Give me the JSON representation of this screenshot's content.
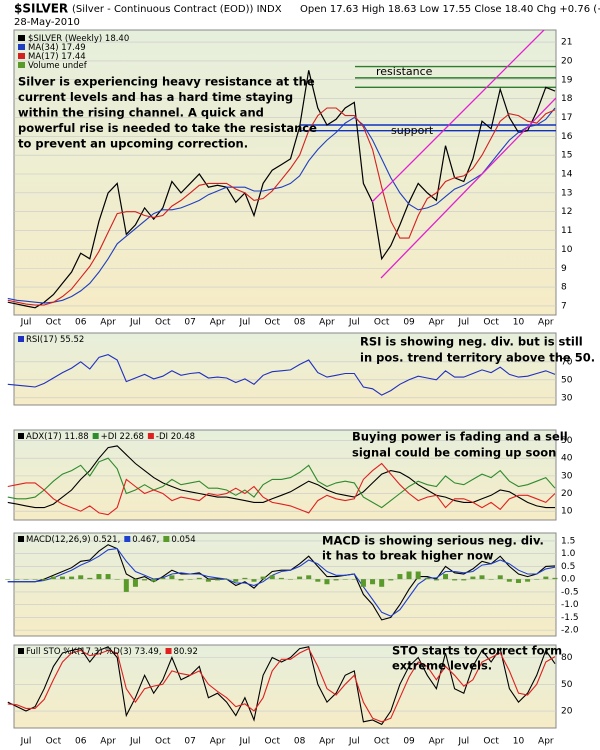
{
  "chart_data": [
    {
      "type": "line",
      "title": "$SILVER",
      "subtitle": "(Silver - Continuous Contract (EOD)) INDX",
      "date": "28-May-2010",
      "quote": "Open 17.63 High 18.63 Low 17.55 Close 18.40 Chg +0.76 (+4.31%)",
      "categories": [
        null,
        null,
        "Jul",
        null,
        null,
        "Oct",
        null,
        null,
        "06",
        null,
        null,
        "Apr",
        null,
        null,
        "Jul",
        null,
        null,
        "Oct",
        null,
        null,
        "07",
        null,
        null,
        "Apr",
        null,
        null,
        "Jul",
        null,
        null,
        "Oct",
        null,
        null,
        "08",
        null,
        null,
        "Apr",
        null,
        null,
        "Jul",
        null,
        null,
        "Oct",
        null,
        null,
        "09",
        null,
        null,
        "Apr",
        null,
        null,
        "Jul",
        null,
        null,
        "Oct",
        null,
        null,
        "10",
        null,
        null,
        "Apr",
        null
      ],
      "series": [
        {
          "name": "$SILVER (Weekly) 18.40",
          "color": "#000000",
          "values": [
            7.2,
            7.1,
            7.0,
            6.9,
            7.2,
            7.6,
            8.2,
            8.8,
            9.8,
            9.5,
            11.5,
            13.0,
            13.5,
            10.8,
            11.3,
            12.2,
            11.6,
            12.2,
            13.6,
            13.0,
            13.5,
            14.0,
            13.3,
            13.4,
            13.3,
            12.5,
            13.0,
            11.8,
            13.5,
            14.2,
            14.5,
            14.8,
            16.5,
            19.5,
            17.5,
            16.6,
            16.9,
            17.5,
            17.8,
            13.5,
            12.5,
            9.5,
            10.2,
            11.3,
            12.5,
            13.5,
            13.0,
            12.6,
            15.5,
            13.8,
            13.6,
            14.8,
            16.8,
            16.4,
            18.5,
            17.0,
            16.2,
            16.3,
            17.3,
            18.6,
            18.4
          ]
        },
        {
          "name": "MA(34) 17.49",
          "color": "#1f3fc0",
          "values": [
            7.4,
            7.3,
            7.25,
            7.2,
            7.15,
            7.2,
            7.3,
            7.5,
            7.8,
            8.2,
            8.8,
            9.5,
            10.3,
            10.7,
            11.1,
            11.5,
            11.9,
            12.1,
            12.1,
            12.2,
            12.4,
            12.6,
            12.9,
            13.1,
            13.3,
            13.3,
            13.3,
            13.1,
            13.1,
            13.2,
            13.3,
            13.5,
            13.9,
            14.7,
            15.3,
            15.8,
            16.2,
            16.7,
            17.0,
            16.6,
            15.8,
            14.8,
            13.8,
            13.0,
            12.4,
            12.1,
            12.2,
            12.4,
            12.8,
            13.2,
            13.4,
            13.7,
            14.0,
            14.6,
            15.2,
            15.8,
            16.2,
            16.5,
            16.6,
            16.9,
            17.5
          ]
        },
        {
          "name": "MA(17) 17.44",
          "color": "#d42020",
          "values": [
            7.3,
            7.2,
            7.1,
            7.05,
            7.05,
            7.2,
            7.5,
            7.9,
            8.5,
            9.1,
            9.9,
            10.9,
            11.9,
            12.0,
            12.0,
            11.8,
            11.7,
            11.8,
            12.3,
            12.6,
            13.0,
            13.4,
            13.5,
            13.5,
            13.5,
            13.2,
            13.0,
            12.6,
            12.7,
            13.1,
            13.7,
            14.3,
            15.0,
            16.3,
            17.1,
            17.5,
            17.5,
            17.1,
            17.1,
            16.5,
            15.3,
            13.3,
            11.5,
            10.6,
            10.6,
            11.8,
            12.7,
            13.0,
            13.6,
            13.8,
            13.9,
            14.3,
            15.0,
            15.9,
            16.8,
            17.2,
            17.1,
            16.8,
            16.7,
            17.2,
            17.4
          ]
        }
      ],
      "legend_note": "Volume undef",
      "ylim": [
        6.52,
        21.64
      ],
      "yticks": [
        7,
        8,
        9,
        10,
        11,
        12,
        13,
        14,
        15,
        16,
        17,
        18,
        19,
        20,
        21
      ],
      "grid": true,
      "resistance_label": "resistance",
      "resistance_levels": [
        19.7,
        19.1,
        18.6
      ],
      "support_label": "support",
      "support_levels": [
        16.6,
        16.3
      ],
      "annotation": [
        "Silver is experiencing heavy resistance at the",
        "current levels and has a hard time staying",
        "within the rising channel. A quick and",
        "powerful rise is needed to take the resistance",
        "to prevent an upcoming correction."
      ]
    },
    {
      "type": "line",
      "series": [
        {
          "name": "RSI(17) 55.52",
          "color": "#2030c0",
          "values": [
            45,
            44,
            43,
            42,
            46,
            52,
            58,
            63,
            70,
            62,
            75,
            78,
            72,
            48,
            52,
            56,
            51,
            54,
            60,
            55,
            57,
            58,
            52,
            53,
            52,
            47,
            51,
            45,
            55,
            59,
            60,
            61,
            67,
            72,
            58,
            53,
            55,
            57,
            57,
            42,
            40,
            33,
            38,
            45,
            50,
            54,
            52,
            50,
            60,
            53,
            53,
            57,
            61,
            58,
            64,
            56,
            53,
            54,
            57,
            60,
            56
          ]
        }
      ],
      "ylim": [
        22,
        102
      ],
      "yticks": [
        30,
        50,
        70
      ],
      "grid": true,
      "annotation": [
        "RSI is showing neg. div. but is still",
        "in pos. trend territory above the 50."
      ]
    },
    {
      "type": "line",
      "series": [
        {
          "name": "ADX(17) 11.88",
          "color": "#000000",
          "values": [
            15,
            14,
            13,
            12,
            12,
            14,
            18,
            22,
            28,
            33,
            40,
            46,
            47,
            42,
            37,
            33,
            29,
            26,
            24,
            22,
            21,
            20,
            19,
            18,
            18,
            17,
            16,
            15,
            15,
            17,
            19,
            21,
            24,
            27,
            25,
            22,
            20,
            19,
            18,
            21,
            26,
            31,
            33,
            32,
            29,
            25,
            22,
            19,
            18,
            16,
            15,
            15,
            17,
            19,
            22,
            21,
            18,
            15,
            13,
            12,
            12
          ]
        },
        {
          "name": "+DI 22.68",
          "color": "#2e8b2e",
          "values": [
            18,
            17,
            17,
            18,
            22,
            27,
            31,
            33,
            36,
            30,
            38,
            40,
            34,
            20,
            22,
            25,
            22,
            24,
            28,
            25,
            26,
            27,
            23,
            23,
            22,
            19,
            22,
            18,
            25,
            28,
            28,
            29,
            32,
            36,
            27,
            24,
            26,
            27,
            26,
            18,
            15,
            12,
            16,
            20,
            24,
            27,
            25,
            24,
            30,
            26,
            25,
            28,
            31,
            29,
            33,
            27,
            24,
            25,
            27,
            29,
            23
          ]
        },
        {
          "name": "-DI 20.48",
          "color": "#e02020",
          "values": [
            24,
            25,
            26,
            26,
            22,
            17,
            14,
            12,
            10,
            13,
            9,
            8,
            12,
            28,
            24,
            20,
            22,
            20,
            16,
            18,
            17,
            16,
            20,
            19,
            20,
            23,
            20,
            24,
            18,
            15,
            14,
            13,
            11,
            9,
            16,
            19,
            17,
            16,
            17,
            28,
            33,
            37,
            31,
            25,
            20,
            16,
            18,
            19,
            12,
            17,
            17,
            15,
            12,
            15,
            11,
            17,
            19,
            19,
            17,
            15,
            20
          ]
        }
      ],
      "ylim": [
        5,
        56
      ],
      "yticks": [
        10,
        20,
        30,
        40,
        50
      ],
      "grid": true,
      "annotation": [
        "Buying power is fading and a sell",
        "signal could be coming up soon"
      ]
    },
    {
      "type": "line",
      "series": [
        {
          "name": "MACD(12,26,9) 0.521,",
          "color": "#000000",
          "values": [
            -0.1,
            -0.1,
            -0.1,
            -0.1,
            0.0,
            0.15,
            0.3,
            0.45,
            0.7,
            0.75,
            1.1,
            1.35,
            1.2,
            0.2,
            0.0,
            0.1,
            -0.1,
            0.1,
            0.35,
            0.2,
            0.2,
            0.25,
            0.0,
            0.0,
            0.0,
            -0.25,
            -0.1,
            -0.35,
            0.0,
            0.3,
            0.35,
            0.35,
            0.6,
            0.9,
            0.5,
            0.1,
            0.1,
            0.15,
            0.2,
            -0.6,
            -1.0,
            -1.6,
            -1.5,
            -1.0,
            -0.4,
            0.1,
            0.1,
            0.0,
            0.5,
            0.25,
            0.2,
            0.4,
            0.7,
            0.6,
            0.9,
            0.5,
            0.2,
            0.1,
            0.2,
            0.5,
            0.52
          ]
        },
        {
          "name": "0.467,",
          "color": "#2040d0",
          "values": [
            -0.1,
            -0.1,
            -0.1,
            -0.1,
            -0.05,
            0.05,
            0.2,
            0.35,
            0.55,
            0.7,
            0.9,
            1.15,
            1.2,
            0.7,
            0.3,
            0.15,
            0.0,
            0.05,
            0.2,
            0.25,
            0.2,
            0.2,
            0.1,
            0.05,
            0.0,
            -0.15,
            -0.15,
            -0.25,
            -0.1,
            0.15,
            0.3,
            0.35,
            0.5,
            0.75,
            0.6,
            0.3,
            0.15,
            0.15,
            0.2,
            -0.3,
            -0.8,
            -1.3,
            -1.45,
            -1.2,
            -0.7,
            -0.2,
            0.05,
            0.05,
            0.3,
            0.3,
            0.25,
            0.3,
            0.55,
            0.6,
            0.75,
            0.6,
            0.35,
            0.2,
            0.2,
            0.4,
            0.47
          ]
        },
        {
          "name": "0.054",
          "color": "#5a9a2a",
          "kind": "bar",
          "values": [
            0,
            0,
            0,
            0,
            -0.05,
            0.1,
            0.1,
            0.1,
            0.15,
            0.05,
            0.2,
            0.2,
            0,
            -0.5,
            -0.3,
            -0.05,
            -0.1,
            0.05,
            0.15,
            -0.05,
            0,
            0.05,
            -0.1,
            -0.05,
            0,
            -0.1,
            0.05,
            -0.1,
            0.1,
            0.15,
            0.05,
            0,
            0.1,
            0.15,
            -0.1,
            -0.2,
            -0.05,
            0,
            0,
            -0.3,
            -0.2,
            -0.3,
            -0.05,
            0.2,
            0.3,
            0.3,
            0.05,
            -0.05,
            0.2,
            -0.05,
            -0.05,
            0.1,
            0.15,
            0,
            0.15,
            -0.1,
            -0.15,
            -0.1,
            0,
            0.1,
            0.05
          ]
        }
      ],
      "ylim": [
        -2.23,
        1.81
      ],
      "yticks": [
        {
          "value": 1.5,
          "label": "1.5"
        },
        {
          "value": 1,
          "label": "1.0"
        },
        {
          "value": 0.5,
          "label": "0.5"
        },
        {
          "value": 0,
          "label": "0.0"
        },
        {
          "value": -0.5,
          "label": "-0.5"
        },
        {
          "value": -1,
          "label": "-1.0"
        },
        {
          "value": -1.5,
          "label": "-1.5"
        },
        {
          "value": -2,
          "label": "-2.0"
        }
      ],
      "grid": true,
      "annotation": [
        "MACD is showing serious neg. div.",
        "it has to break higher now"
      ]
    },
    {
      "type": "line",
      "series": [
        {
          "name": "Full STO %K(17,3) %D(3) 73.49,",
          "color": "#000000",
          "values": [
            30,
            25,
            20,
            25,
            45,
            70,
            85,
            88,
            90,
            75,
            88,
            92,
            80,
            15,
            35,
            60,
            40,
            55,
            80,
            55,
            60,
            70,
            35,
            40,
            30,
            15,
            35,
            10,
            60,
            80,
            75,
            80,
            90,
            92,
            50,
            30,
            40,
            60,
            65,
            8,
            10,
            5,
            20,
            50,
            70,
            80,
            60,
            45,
            85,
            45,
            40,
            70,
            88,
            75,
            90,
            45,
            30,
            40,
            60,
            88,
            73
          ]
        },
        {
          "name": "80.92",
          "color": "#e02020",
          "values": [
            28,
            27,
            23,
            23,
            33,
            55,
            75,
            85,
            88,
            82,
            84,
            88,
            85,
            45,
            30,
            45,
            48,
            50,
            65,
            62,
            60,
            65,
            50,
            42,
            35,
            25,
            28,
            20,
            35,
            65,
            78,
            78,
            85,
            90,
            70,
            45,
            38,
            50,
            60,
            30,
            12,
            8,
            12,
            35,
            58,
            75,
            70,
            55,
            70,
            60,
            48,
            55,
            75,
            80,
            85,
            65,
            40,
            38,
            50,
            75,
            81
          ]
        }
      ],
      "ylim": [
        1,
        94
      ],
      "yticks": [
        20,
        50,
        80
      ],
      "grid": true,
      "annotation": [
        "STO starts to correct form",
        "extreme levels."
      ]
    }
  ]
}
